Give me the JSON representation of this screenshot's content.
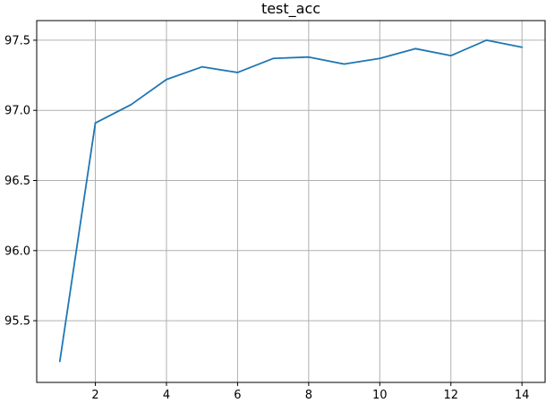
{
  "chart_data": {
    "type": "line",
    "title": "test_acc",
    "xlabel": "",
    "ylabel": "",
    "xlim": [
      0.35,
      14.65
    ],
    "ylim": [
      95.06,
      97.64
    ],
    "xticks": [
      2,
      4,
      6,
      8,
      10,
      12,
      14
    ],
    "yticks": [
      95.5,
      96.0,
      96.5,
      97.0,
      97.5
    ],
    "xtick_labels": [
      "2",
      "4",
      "6",
      "8",
      "10",
      "12",
      "14"
    ],
    "ytick_labels": [
      "95.5",
      "96.0",
      "96.5",
      "97.0",
      "97.5"
    ],
    "grid": true,
    "legend": "none",
    "series": [
      {
        "color": "#1f77b4",
        "x": [
          1,
          2,
          3,
          4,
          5,
          6,
          7,
          8,
          9,
          10,
          11,
          12,
          13,
          14
        ],
        "values": [
          95.21,
          96.91,
          97.04,
          97.22,
          97.31,
          97.27,
          97.37,
          97.38,
          97.33,
          97.37,
          97.44,
          97.39,
          97.5,
          97.45
        ]
      }
    ]
  }
}
